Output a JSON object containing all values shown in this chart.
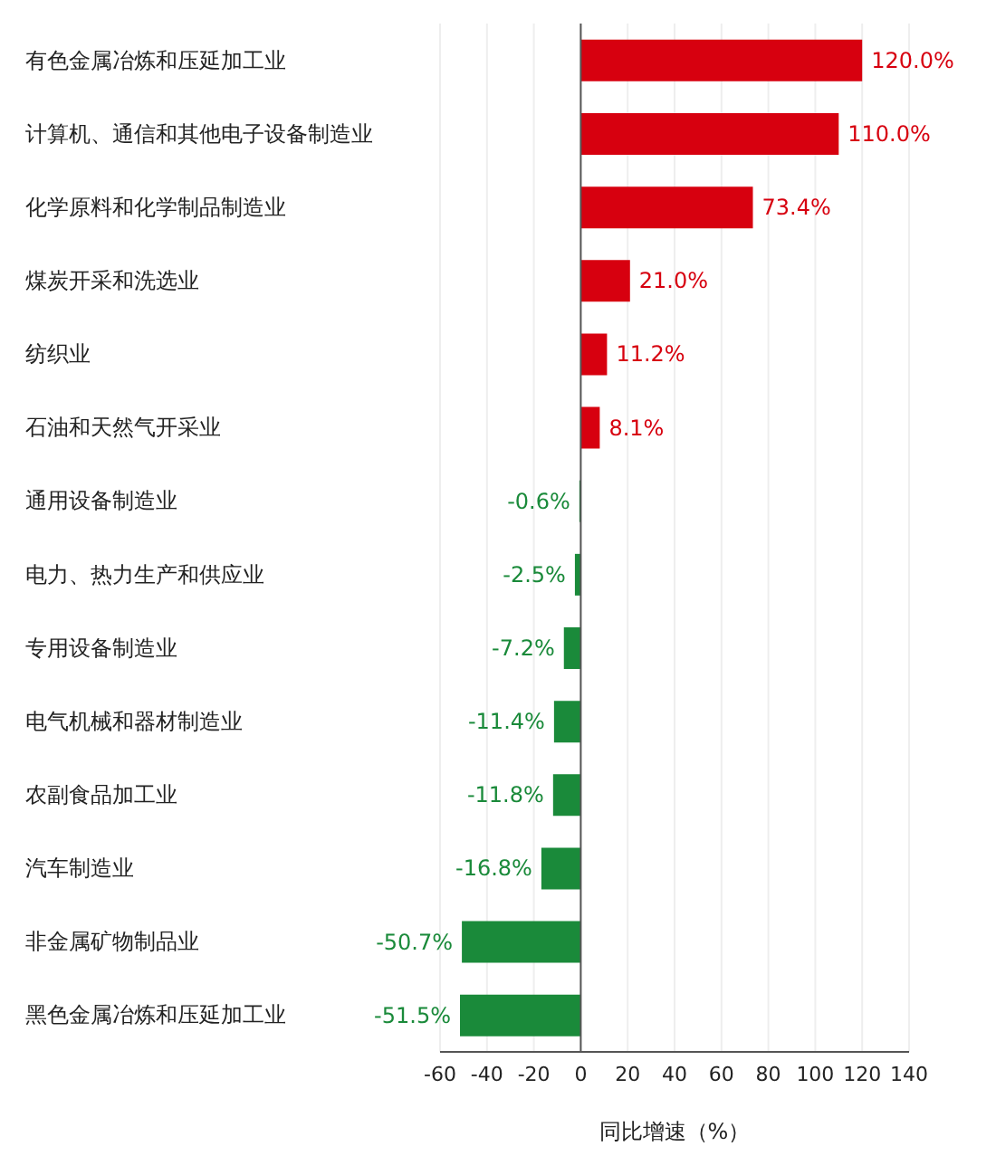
{
  "chart_data": {
    "type": "bar",
    "orientation": "horizontal",
    "xlabel": "同比增速（%）",
    "categories": [
      "有色金属冶炼和压延加工业",
      "计算机、通信和其他电子设备制造业",
      "化学原料和化学制品制造业",
      "煤炭开采和洗选业",
      "纺织业",
      "石油和天然气开采业",
      "通用设备制造业",
      "电力、热力生产和供应业",
      "专用设备制造业",
      "电气机械和器材制造业",
      "农副食品加工业",
      "汽车制造业",
      "非金属矿物制品业",
      "黑色金属冶炼和压延加工业"
    ],
    "values": [
      120.0,
      110.0,
      73.4,
      21.0,
      11.2,
      8.1,
      -0.6,
      -2.5,
      -7.2,
      -11.4,
      -11.8,
      -16.8,
      -50.7,
      -51.5
    ],
    "colors": [
      "#d7000f",
      "#d7000f",
      "#d7000f",
      "#d7000f",
      "#d7000f",
      "#d7000f",
      "#1a8a3a",
      "#1a8a3a",
      "#1a8a3a",
      "#1a8a3a",
      "#1a8a3a",
      "#1a8a3a",
      "#1a8a3a",
      "#1a8a3a"
    ],
    "value_labels": [
      "120.0%",
      "110.0%",
      "73.4%",
      "21.0%",
      "11.2%",
      "8.1%",
      "-0.6%",
      "-2.5%",
      "-7.2%",
      "-11.4%",
      "-11.8%",
      "-16.8%",
      "-50.7%",
      "-51.5%"
    ],
    "xlim": [
      -60,
      140
    ],
    "xticks": [
      -60,
      -40,
      -20,
      0,
      20,
      40,
      60,
      80,
      100,
      120,
      140
    ],
    "grid": "x"
  }
}
